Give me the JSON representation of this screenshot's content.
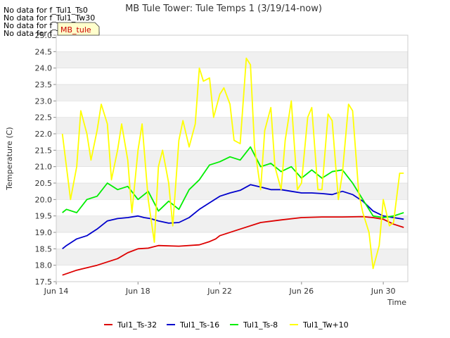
{
  "no_data_messages": [
    "No data for f_Tul1_Ts0",
    "No data for f_Tul1_Tw30",
    "No data for f_Tul1_Tw50",
    "No data for f_Tul1_Tw100"
  ],
  "badge": {
    "label": "MB_tule",
    "bg": "#ffffcc",
    "fg": "#cc0000"
  },
  "chart_data": {
    "type": "line",
    "title": "MB Tule Tower: Tule Temps 1 (3/19/14-now)",
    "xlabel": "Time",
    "ylabel": "Temperature (C)",
    "xlim": [
      0,
      17.2
    ],
    "ylim": [
      17.5,
      25.0
    ],
    "yticks": [
      17.5,
      18.0,
      18.5,
      19.0,
      19.5,
      20.0,
      20.5,
      21.0,
      21.5,
      22.0,
      22.5,
      23.0,
      23.5,
      24.0,
      24.5,
      25.0
    ],
    "ytick_labels": [
      "17.5",
      "18.0",
      "18.5",
      "19.0",
      "19.5",
      "20.0",
      "20.5",
      "21.0",
      "21.5",
      "22.0",
      "22.5",
      "23.0",
      "23.5",
      "24.0",
      "24.5",
      "25.0"
    ],
    "xticks": [
      0,
      4,
      8,
      12,
      16
    ],
    "xtick_labels": [
      "Jun 14",
      "Jun 18",
      "Jun 22",
      "Jun 26",
      "Jun 30"
    ],
    "x_unit": "days since Jun 14",
    "series": [
      {
        "name": "Tul1_Ts-32",
        "color": "#dd0000",
        "x": [
          0.3,
          1,
          2,
          3,
          3.5,
          4,
          4.5,
          5,
          6,
          7,
          7.5,
          7.8,
          8,
          9,
          10,
          11,
          12,
          13,
          14,
          15,
          15.5,
          16,
          16.5,
          17
        ],
        "y": [
          17.7,
          17.85,
          18.0,
          18.2,
          18.38,
          18.5,
          18.52,
          18.6,
          18.58,
          18.62,
          18.72,
          18.8,
          18.9,
          19.1,
          19.3,
          19.38,
          19.45,
          19.47,
          19.47,
          19.48,
          19.45,
          19.4,
          19.25,
          19.15
        ]
      },
      {
        "name": "Tul1_Ts-16",
        "color": "#0000cc",
        "x": [
          0.3,
          0.5,
          1,
          1.5,
          2,
          2.5,
          3,
          3.5,
          4,
          4.3,
          4.6,
          5,
          5.5,
          6,
          6.5,
          7,
          7.5,
          8,
          8.5,
          9,
          9.5,
          10,
          10.5,
          11,
          11.5,
          12,
          12.5,
          13,
          13.5,
          14,
          14.5,
          15,
          15.5,
          16,
          16.5,
          17
        ],
        "y": [
          18.5,
          18.6,
          18.8,
          18.9,
          19.1,
          19.35,
          19.42,
          19.45,
          19.5,
          19.45,
          19.42,
          19.35,
          19.28,
          19.3,
          19.45,
          19.7,
          19.9,
          20.1,
          20.2,
          20.28,
          20.45,
          20.38,
          20.3,
          20.3,
          20.25,
          20.2,
          20.2,
          20.18,
          20.15,
          20.25,
          20.15,
          19.95,
          19.65,
          19.5,
          19.45,
          19.4
        ]
      },
      {
        "name": "Tul1_Ts-8",
        "color": "#00ee00",
        "x": [
          0.3,
          0.5,
          1,
          1.5,
          2,
          2.5,
          3,
          3.5,
          4,
          4.5,
          5,
          5.5,
          6,
          6.5,
          7,
          7.5,
          8,
          8.5,
          9,
          9.5,
          10,
          10.5,
          11,
          11.5,
          12,
          12.5,
          13,
          13.5,
          14,
          14.5,
          15,
          15.5,
          16,
          16.5,
          17
        ],
        "y": [
          19.6,
          19.7,
          19.6,
          20.0,
          20.1,
          20.5,
          20.3,
          20.4,
          20.0,
          20.25,
          19.65,
          19.95,
          19.7,
          20.3,
          20.6,
          21.05,
          21.15,
          21.3,
          21.2,
          21.6,
          21.0,
          21.1,
          20.85,
          21.0,
          20.65,
          20.9,
          20.65,
          20.85,
          20.9,
          20.5,
          20.0,
          19.5,
          19.45,
          19.5,
          19.6
        ]
      },
      {
        "name": "Tul1_Tw+10",
        "color": "#ffff00",
        "x": [
          0.3,
          0.5,
          0.7,
          1,
          1.2,
          1.5,
          1.7,
          2.0,
          2.2,
          2.5,
          2.7,
          3.0,
          3.2,
          3.5,
          3.7,
          4.0,
          4.2,
          4.5,
          4.8,
          5.0,
          5.2,
          5.5,
          5.7,
          6.0,
          6.2,
          6.5,
          6.8,
          7.0,
          7.2,
          7.5,
          7.7,
          8.0,
          8.2,
          8.5,
          8.7,
          9.0,
          9.3,
          9.5,
          9.7,
          10.0,
          10.2,
          10.5,
          10.7,
          11.0,
          11.2,
          11.5,
          11.8,
          12.0,
          12.3,
          12.5,
          12.8,
          13.0,
          13.3,
          13.5,
          13.8,
          14.0,
          14.3,
          14.5,
          14.8,
          15.0,
          15.3,
          15.5,
          15.8,
          16.0,
          16.3,
          16.5,
          16.8,
          17.0
        ],
        "y": [
          22.0,
          21.0,
          20.0,
          21.0,
          22.7,
          22.0,
          21.2,
          22.1,
          22.9,
          22.3,
          20.6,
          21.5,
          22.3,
          21.2,
          19.6,
          21.5,
          22.3,
          20.0,
          18.7,
          21.0,
          21.5,
          20.5,
          19.2,
          21.8,
          22.4,
          21.6,
          22.3,
          24.0,
          23.6,
          23.7,
          22.5,
          23.2,
          23.4,
          22.9,
          21.8,
          21.7,
          24.3,
          24.1,
          21.6,
          20.3,
          22.1,
          22.8,
          21.0,
          20.3,
          21.8,
          23.0,
          20.3,
          20.5,
          22.5,
          22.8,
          20.3,
          20.3,
          22.6,
          22.4,
          20.0,
          20.8,
          22.9,
          22.7,
          20.2,
          19.6,
          19.0,
          17.9,
          18.6,
          20.0,
          19.2,
          19.3,
          20.8,
          20.8
        ]
      }
    ],
    "legend_position": "bottom"
  }
}
